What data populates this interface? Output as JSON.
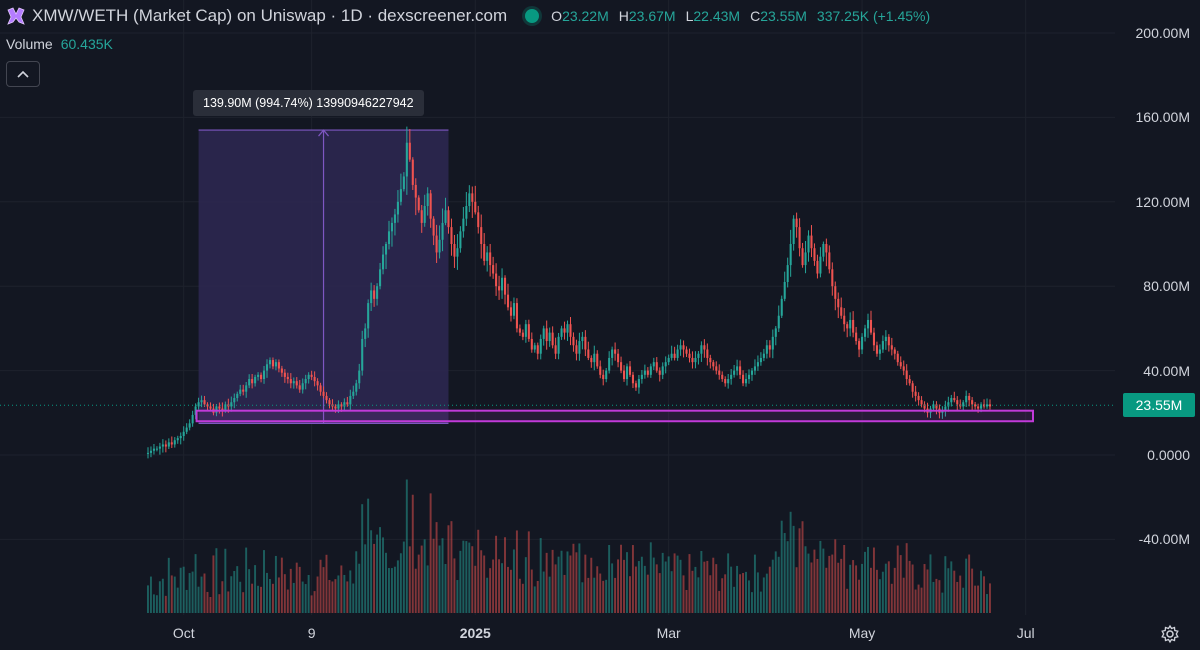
{
  "header": {
    "title": "XMW/WETH (Market Cap) on Uniswap · 1D · dexscreener.com",
    "ohlc": [
      {
        "key": "O",
        "value": "23.22M"
      },
      {
        "key": "H",
        "value": "23.67M"
      },
      {
        "key": "L",
        "value": "22.43M"
      },
      {
        "key": "C",
        "value": "23.55M"
      }
    ],
    "change": "337.25K (+1.45%)",
    "volume_label": "Volume",
    "volume_value": "60.435K",
    "collapse_icon": "chevron-up-icon"
  },
  "measure_label": "139.90M (994.74%) 13990946227942",
  "last_price_badge": "23.55M",
  "colors": {
    "up": "#26a69a",
    "down": "#ef5350",
    "measure_fill": "#2e2852",
    "measure_line": "#7e57c2",
    "support_box": "#c13ad9",
    "background": "#131722",
    "last_price": "#089981"
  },
  "chart_data": {
    "type": "candlestick",
    "y_unit": "M",
    "ylim": [
      -66,
      200
    ],
    "y_ticks": [
      "200.00M",
      "160.00M",
      "120.00M",
      "80.00M",
      "40.00M",
      "0.0000",
      "-40.00M"
    ],
    "x_ticks": [
      "Oct",
      "9",
      "2025",
      "Mar",
      "May",
      "Jul"
    ],
    "closes": [
      1,
      2,
      3,
      3,
      4,
      5,
      4,
      6,
      5,
      7,
      8,
      9,
      11,
      13,
      15,
      19,
      23,
      25,
      26,
      24,
      23,
      22,
      20,
      23,
      22,
      21,
      24,
      23,
      25,
      27,
      29,
      31,
      30,
      33,
      36,
      34,
      37,
      38,
      36,
      40,
      43,
      45,
      42,
      44,
      41,
      39,
      37,
      36,
      34,
      35,
      33,
      31,
      34,
      36,
      38,
      37,
      35,
      33,
      30,
      28,
      26,
      24,
      23,
      22,
      24,
      23,
      25,
      24,
      28,
      30,
      34,
      40,
      55,
      60,
      72,
      78,
      74,
      80,
      88,
      95,
      100,
      106,
      110,
      114,
      120,
      126,
      132,
      148,
      140,
      128,
      122,
      116,
      110,
      118,
      124,
      112,
      104,
      96,
      102,
      110,
      116,
      108,
      100,
      94,
      98,
      106,
      112,
      118,
      124,
      120,
      115,
      108,
      100,
      92,
      96,
      90,
      86,
      80,
      78,
      84,
      76,
      70,
      66,
      72,
      60,
      58,
      56,
      62,
      55,
      50,
      52,
      48,
      55,
      60,
      54,
      58,
      52,
      48,
      56,
      60,
      58,
      62,
      56,
      52,
      48,
      54,
      56,
      50,
      46,
      44,
      48,
      42,
      38,
      36,
      40,
      46,
      50,
      48,
      44,
      40,
      36,
      42,
      38,
      34,
      32,
      36,
      38,
      40,
      38,
      42,
      44,
      40,
      38,
      42,
      44,
      46,
      48,
      46,
      50,
      52,
      50,
      48,
      46,
      44,
      46,
      48,
      52,
      50,
      46,
      44,
      42,
      40,
      38,
      36,
      34,
      36,
      38,
      40,
      42,
      38,
      34,
      36,
      38,
      40,
      42,
      44,
      46,
      48,
      52,
      50,
      56,
      60,
      66,
      74,
      82,
      90,
      100,
      112,
      108,
      98,
      90,
      96,
      104,
      98,
      92,
      86,
      94,
      100,
      96,
      88,
      80,
      74,
      70,
      66,
      62,
      60,
      64,
      58,
      54,
      50,
      56,
      60,
      64,
      58,
      52,
      48,
      50,
      54,
      56,
      52,
      50,
      48,
      44,
      42,
      40,
      36,
      34,
      30,
      28,
      26,
      24,
      22,
      20,
      22,
      24,
      22,
      20,
      21,
      23,
      25,
      27,
      26,
      24,
      23,
      25,
      28,
      26,
      24,
      23,
      22,
      24,
      23,
      24,
      23
    ],
    "last_price": 23.55,
    "measure": {
      "start_index": 17,
      "end_index": 101,
      "low": 15,
      "high": 154
    },
    "support_zone": {
      "start_index": 17,
      "end_index": 305,
      "low": 16,
      "high": 21
    }
  }
}
